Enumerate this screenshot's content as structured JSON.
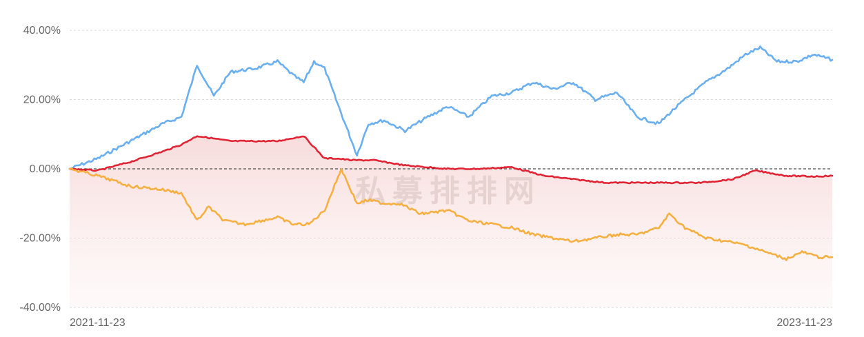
{
  "chart_data": {
    "type": "line",
    "title": "",
    "xlabel": "",
    "ylabel": "",
    "ylim": [
      -40,
      40
    ],
    "y_ticks": [
      40,
      20,
      0,
      -20,
      -40
    ],
    "y_tick_labels": [
      "40.00%",
      "20.00%",
      "0.00%",
      "-20.00%",
      "-40.00%"
    ],
    "x_range": [
      "2021-11-23",
      "2023-11-23"
    ],
    "x_tick_labels": [
      "2021-11-23",
      "2023-11-23"
    ],
    "grid": "horizontal dashed",
    "zero_line": "dashed black",
    "watermark": "私募排排网",
    "series": [
      {
        "color": "#6aaff0",
        "fill": false,
        "x": [
          "2021-11-23",
          "2021-12-20",
          "2022-01-20",
          "2022-02-20",
          "2022-03-10",
          "2022-03-25",
          "2022-04-10",
          "2022-04-26",
          "2022-05-20",
          "2022-06-10",
          "2022-06-25",
          "2022-07-05",
          "2022-07-15",
          "2022-07-25",
          "2022-08-05",
          "2022-08-15",
          "2022-08-25",
          "2022-09-05",
          "2022-09-20",
          "2022-10-10",
          "2022-11-01",
          "2022-11-20",
          "2022-12-10",
          "2023-01-01",
          "2023-01-20",
          "2023-02-10",
          "2023-03-01",
          "2023-03-20",
          "2023-04-10",
          "2023-05-01",
          "2023-05-20",
          "2023-06-10",
          "2023-06-20",
          "2023-07-05",
          "2023-07-25",
          "2023-08-15",
          "2023-09-01",
          "2023-09-15",
          "2023-10-01",
          "2023-10-20",
          "2023-11-05",
          "2023-11-23"
        ],
        "values": [
          0,
          3,
          8,
          13,
          15,
          30,
          21,
          28,
          29,
          31,
          27,
          25,
          31,
          29,
          20,
          12,
          4,
          13,
          14,
          11,
          15,
          18,
          15,
          21,
          22,
          25,
          23,
          25,
          20,
          22,
          15,
          13,
          16,
          20,
          25,
          29,
          33,
          35,
          31,
          31,
          33,
          31.5
        ]
      },
      {
        "color": "#e02434",
        "fill": true,
        "x": [
          "2021-11-23",
          "2021-12-20",
          "2022-01-20",
          "2022-02-20",
          "2022-03-10",
          "2022-03-25",
          "2022-04-26",
          "2022-06-10",
          "2022-07-05",
          "2022-07-25",
          "2022-08-05",
          "2022-08-20",
          "2022-09-10",
          "2022-10-10",
          "2022-11-20",
          "2022-12-20",
          "2023-01-20",
          "2023-02-20",
          "2023-03-20",
          "2023-04-20",
          "2023-05-20",
          "2023-06-20",
          "2023-07-20",
          "2023-08-20",
          "2023-09-10",
          "2023-10-10",
          "2023-11-05",
          "2023-11-23"
        ],
        "values": [
          0,
          -0.5,
          2,
          5,
          7,
          9.5,
          8,
          8,
          9.5,
          3,
          3,
          2.5,
          2.5,
          1,
          0,
          0,
          0.5,
          -2,
          -3,
          -4,
          -4,
          -4,
          -4,
          -3,
          -0.5,
          -2,
          -2.2,
          -2
        ]
      },
      {
        "color": "#f5b041",
        "fill": false,
        "x": [
          "2021-11-23",
          "2021-12-20",
          "2022-01-20",
          "2022-02-20",
          "2022-03-10",
          "2022-03-25",
          "2022-04-05",
          "2022-04-20",
          "2022-05-10",
          "2022-05-25",
          "2022-06-10",
          "2022-06-25",
          "2022-07-10",
          "2022-07-25",
          "2022-08-10",
          "2022-08-25",
          "2022-09-05",
          "2022-09-20",
          "2022-10-05",
          "2022-10-25",
          "2022-11-20",
          "2022-12-10",
          "2023-01-01",
          "2023-01-20",
          "2023-02-10",
          "2023-03-01",
          "2023-03-20",
          "2023-04-10",
          "2023-05-01",
          "2023-05-20",
          "2023-06-10",
          "2023-06-20",
          "2023-07-05",
          "2023-07-25",
          "2023-08-15",
          "2023-09-01",
          "2023-09-20",
          "2023-10-10",
          "2023-10-25",
          "2023-11-10",
          "2023-11-23"
        ],
        "values": [
          0,
          -2,
          -5,
          -6,
          -7,
          -15,
          -11,
          -15,
          -16,
          -15,
          -14,
          -16,
          -16,
          -12,
          0,
          -10,
          -9,
          -10,
          -10,
          -13,
          -12,
          -15,
          -16,
          -17,
          -19,
          -20,
          -21,
          -20,
          -19,
          -19,
          -17,
          -13,
          -17,
          -20,
          -21,
          -22,
          -24,
          -26,
          -24,
          -25.5,
          -25.5
        ]
      }
    ]
  }
}
